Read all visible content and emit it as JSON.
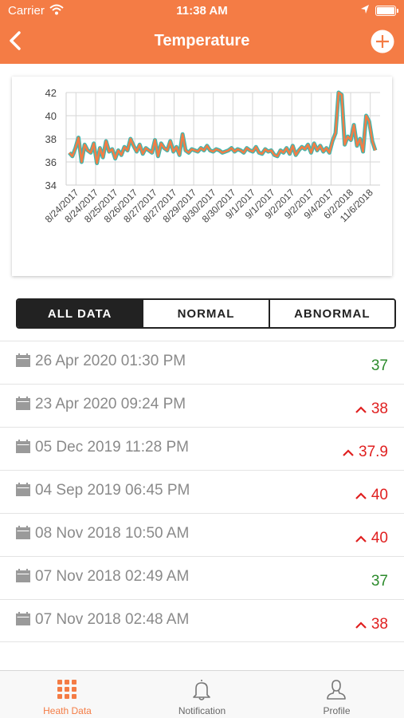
{
  "status_bar": {
    "carrier": "Carrier",
    "time": "11:38 AM"
  },
  "header": {
    "title": "Temperature",
    "back_icon": "chevron-left-icon",
    "add_icon": "plus-circle-icon"
  },
  "colors": {
    "accent": "#f47c45",
    "line_orange": "#f47c45",
    "line_teal": "#3fb8b0",
    "normal": "#2b8a2b",
    "abnormal": "#e02020",
    "segment_active": "#222222"
  },
  "chart_data": {
    "type": "line",
    "ylim": [
      34,
      42
    ],
    "y_ticks": [
      "34",
      "36",
      "38",
      "40",
      "42"
    ],
    "x_ticks": [
      "8/24/2017",
      "8/24/2017",
      "8/25/2017",
      "8/26/2017",
      "8/27/2017",
      "8/27/2017",
      "8/29/2017",
      "8/30/2017",
      "8/30/2017",
      "9/1/2017",
      "9/1/2017",
      "9/2/2017",
      "9/2/2017",
      "9/4/2017",
      "6/2/2018",
      "11/6/2018"
    ],
    "grid": true,
    "series": [
      {
        "values": [
          36.8,
          36.5,
          37.2,
          38.1,
          36.0,
          37.5,
          37.0,
          36.8,
          37.6,
          35.9,
          37.2,
          36.4,
          37.8,
          36.9,
          37.1,
          36.3,
          37.0,
          36.6,
          37.3,
          37.0,
          38.0,
          37.4,
          36.9,
          37.5,
          36.7,
          37.2,
          37.0,
          36.8,
          37.9,
          36.5,
          37.6,
          37.2,
          37.0,
          37.8,
          36.9,
          37.3,
          36.6,
          38.4,
          37.0,
          36.8,
          37.1,
          37.0,
          36.9,
          37.2,
          37.0,
          37.4,
          37.0,
          36.9,
          37.1,
          37.0,
          36.8,
          36.9,
          37.0,
          37.2,
          36.9,
          37.1,
          37.0,
          36.8,
          37.2,
          37.0,
          36.9,
          37.3,
          36.8,
          36.7,
          37.1,
          36.9,
          37.0,
          36.6,
          36.5,
          37.0,
          36.8,
          37.2,
          36.7,
          37.4,
          36.6,
          37.0,
          37.3,
          37.1,
          37.5,
          36.8,
          37.6,
          37.0,
          37.4,
          36.9,
          37.2,
          36.8,
          37.8,
          38.5,
          42.0,
          41.8,
          37.5,
          38.2,
          37.9,
          39.2,
          37.4,
          38.0,
          36.9,
          40.0,
          39.5,
          37.8,
          37.0
        ]
      }
    ]
  },
  "segments": {
    "all": "ALL DATA",
    "normal": "NORMAL",
    "abnormal": "ABNORMAL"
  },
  "records": [
    {
      "date": "26 Apr 2020 01:30 PM",
      "value": "37",
      "status": "normal"
    },
    {
      "date": "23 Apr 2020 09:24 PM",
      "value": "38",
      "status": "abnormal"
    },
    {
      "date": "05 Dec 2019 11:28 PM",
      "value": "37.9",
      "status": "abnormal"
    },
    {
      "date": "04 Sep 2019 06:45 PM",
      "value": "40",
      "status": "abnormal"
    },
    {
      "date": "08 Nov 2018 10:50 AM",
      "value": "40",
      "status": "abnormal"
    },
    {
      "date": "07 Nov 2018 02:49 AM",
      "value": "37",
      "status": "normal"
    },
    {
      "date": "07 Nov 2018 02:48 AM",
      "value": "38",
      "status": "abnormal"
    }
  ],
  "tabbar": {
    "items": [
      {
        "label": "Heath Data",
        "icon": "grid-icon",
        "active": true
      },
      {
        "label": "Notification",
        "icon": "bell-icon",
        "active": false
      },
      {
        "label": "Profile",
        "icon": "person-icon",
        "active": false
      }
    ]
  }
}
